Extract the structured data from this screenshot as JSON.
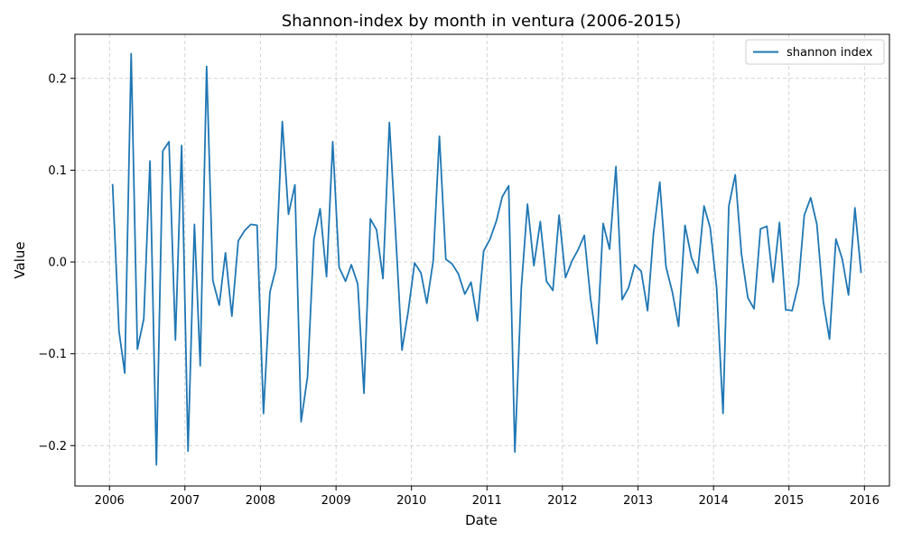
{
  "chart_data": {
    "type": "line",
    "title": "Shannon-index by month in ventura (2006-2015)",
    "xlabel": "Date",
    "ylabel": "Value",
    "xlim": [
      "2005-07-18",
      "2016-05-01"
    ],
    "ylim": [
      -0.244,
      0.248
    ],
    "x_ticks": [
      "2006",
      "2007",
      "2008",
      "2009",
      "2010",
      "2011",
      "2012",
      "2013",
      "2014",
      "2015",
      "2016"
    ],
    "y_ticks": [
      {
        "value": 0.2,
        "label": "0.2"
      },
      {
        "value": 0.1,
        "label": "0.1"
      },
      {
        "value": 0.0,
        "label": "0.0"
      },
      {
        "value": -0.1,
        "label": "−0.1"
      },
      {
        "value": -0.2,
        "label": "−0.2"
      }
    ],
    "grid": true,
    "legend_position": "top-right",
    "series": [
      {
        "name": "shannon index",
        "color": "#1f77b4",
        "points": [
          [
            "2006-01",
            0.085
          ],
          [
            "2006-02",
            -0.075
          ],
          [
            "2006-03",
            -0.121
          ],
          [
            "2006-04",
            0.227
          ],
          [
            "2006-05",
            -0.095
          ],
          [
            "2006-06",
            -0.062
          ],
          [
            "2006-07",
            0.11
          ],
          [
            "2006-08",
            -0.221
          ],
          [
            "2006-09",
            0.121
          ],
          [
            "2006-10",
            0.131
          ],
          [
            "2006-11",
            -0.085
          ],
          [
            "2006-12",
            0.127
          ],
          [
            "2007-01",
            -0.206
          ],
          [
            "2007-02",
            0.041
          ],
          [
            "2007-03",
            -0.113
          ],
          [
            "2007-04",
            0.213
          ],
          [
            "2007-05",
            -0.02
          ],
          [
            "2007-06",
            -0.047
          ],
          [
            "2007-07",
            0.01
          ],
          [
            "2007-08",
            -0.059
          ],
          [
            "2007-09",
            0.023
          ],
          [
            "2007-10",
            0.034
          ],
          [
            "2007-11",
            0.041
          ],
          [
            "2007-12",
            0.04
          ],
          [
            "2008-01",
            -0.165
          ],
          [
            "2008-02",
            -0.033
          ],
          [
            "2008-03",
            -0.007
          ],
          [
            "2008-04",
            0.153
          ],
          [
            "2008-05",
            0.052
          ],
          [
            "2008-06",
            0.084
          ],
          [
            "2008-07",
            -0.174
          ],
          [
            "2008-08",
            -0.125
          ],
          [
            "2008-09",
            0.025
          ],
          [
            "2008-10",
            0.058
          ],
          [
            "2008-11",
            -0.016
          ],
          [
            "2008-12",
            0.131
          ],
          [
            "2009-01",
            -0.006
          ],
          [
            "2009-02",
            -0.021
          ],
          [
            "2009-03",
            -0.003
          ],
          [
            "2009-04",
            -0.024
          ],
          [
            "2009-05",
            -0.143
          ],
          [
            "2009-06",
            0.047
          ],
          [
            "2009-07",
            0.035
          ],
          [
            "2009-08",
            -0.018
          ],
          [
            "2009-09",
            0.152
          ],
          [
            "2009-10",
            0.032
          ],
          [
            "2009-11",
            -0.096
          ],
          [
            "2009-12",
            -0.054
          ],
          [
            "2010-01",
            -0.001
          ],
          [
            "2010-02",
            -0.012
          ],
          [
            "2010-03",
            -0.045
          ],
          [
            "2010-04",
            0.001
          ],
          [
            "2010-05",
            0.137
          ],
          [
            "2010-06",
            0.003
          ],
          [
            "2010-07",
            -0.002
          ],
          [
            "2010-08",
            -0.013
          ],
          [
            "2010-09",
            -0.035
          ],
          [
            "2010-10",
            -0.022
          ],
          [
            "2010-11",
            -0.064
          ],
          [
            "2010-12",
            0.012
          ],
          [
            "2011-01",
            0.025
          ],
          [
            "2011-02",
            0.045
          ],
          [
            "2011-03",
            0.071
          ],
          [
            "2011-04",
            0.083
          ],
          [
            "2011-05",
            -0.207
          ],
          [
            "2011-06",
            -0.029
          ],
          [
            "2011-07",
            0.063
          ],
          [
            "2011-08",
            -0.004
          ],
          [
            "2011-09",
            0.044
          ],
          [
            "2011-10",
            -0.021
          ],
          [
            "2011-11",
            -0.031
          ],
          [
            "2011-12",
            0.051
          ],
          [
            "2012-01",
            -0.017
          ],
          [
            "2012-02",
            0.001
          ],
          [
            "2012-03",
            0.013
          ],
          [
            "2012-04",
            0.029
          ],
          [
            "2012-05",
            -0.04
          ],
          [
            "2012-06",
            -0.089
          ],
          [
            "2012-07",
            0.042
          ],
          [
            "2012-08",
            0.014
          ],
          [
            "2012-09",
            0.104
          ],
          [
            "2012-10",
            -0.041
          ],
          [
            "2012-11",
            -0.028
          ],
          [
            "2012-12",
            -0.003
          ],
          [
            "2013-01",
            -0.01
          ],
          [
            "2013-02",
            -0.053
          ],
          [
            "2013-03",
            0.03
          ],
          [
            "2013-04",
            0.087
          ],
          [
            "2013-05",
            -0.005
          ],
          [
            "2013-06",
            -0.033
          ],
          [
            "2013-07",
            -0.07
          ],
          [
            "2013-08",
            0.04
          ],
          [
            "2013-09",
            0.005
          ],
          [
            "2013-10",
            -0.012
          ],
          [
            "2013-11",
            0.061
          ],
          [
            "2013-12",
            0.037
          ],
          [
            "2014-01",
            -0.028
          ],
          [
            "2014-02",
            -0.165
          ],
          [
            "2014-03",
            0.061
          ],
          [
            "2014-04",
            0.095
          ],
          [
            "2014-05",
            0.009
          ],
          [
            "2014-06",
            -0.039
          ],
          [
            "2014-07",
            -0.051
          ],
          [
            "2014-08",
            0.036
          ],
          [
            "2014-09",
            0.039
          ],
          [
            "2014-10",
            -0.022
          ],
          [
            "2014-11",
            0.043
          ],
          [
            "2014-12",
            -0.052
          ],
          [
            "2015-01",
            -0.053
          ],
          [
            "2015-02",
            -0.024
          ],
          [
            "2015-03",
            0.051
          ],
          [
            "2015-04",
            0.07
          ],
          [
            "2015-05",
            0.041
          ],
          [
            "2015-06",
            -0.043
          ],
          [
            "2015-07",
            -0.084
          ],
          [
            "2015-08",
            0.025
          ],
          [
            "2015-09",
            0.003
          ],
          [
            "2015-10",
            -0.036
          ],
          [
            "2015-11",
            0.059
          ],
          [
            "2015-12",
            -0.012
          ]
        ]
      }
    ]
  }
}
